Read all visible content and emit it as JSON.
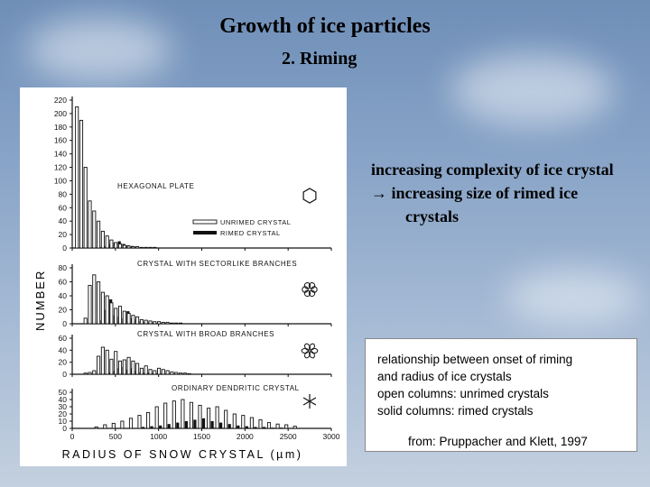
{
  "title": "Growth of ice particles",
  "subtitle": "2. Riming",
  "notes": {
    "line1": "increasing complexity of ice crystal",
    "line2": "→ increasing size of rimed ice",
    "line3": "crystals"
  },
  "caption": {
    "line1": "relationship between onset of riming",
    "line2": "and radius of ice crystals",
    "line3": "open columns: unrimed crystals",
    "line4": "solid columns: rimed crystals",
    "source": "from: Pruppacher and Klett, 1997"
  },
  "chart_data": [
    {
      "type": "bar",
      "title": "HEXAGONAL PLATE",
      "icon": "hexagon-icon",
      "ylim": [
        0,
        220
      ],
      "yticks": [
        "220",
        "200",
        "180",
        "160",
        "140",
        "120",
        "100",
        "80",
        "60",
        "40",
        "20",
        "0"
      ],
      "legend": [
        "UNRIMED CRYSTAL",
        "RIMED CRYSTAL"
      ],
      "x": [
        75,
        125,
        175,
        225,
        275,
        325,
        375,
        425,
        475,
        525,
        575,
        625,
        675,
        725,
        775,
        825,
        875,
        925,
        975
      ],
      "series": [
        {
          "name": "UNRIMED CRYSTAL",
          "values": [
            210,
            190,
            120,
            70,
            55,
            40,
            25,
            18,
            12,
            8,
            6,
            4,
            3,
            2,
            2,
            1,
            1,
            1,
            1
          ]
        },
        {
          "name": "RIMED CRYSTAL",
          "values": [
            0,
            0,
            0,
            0,
            0,
            2,
            3,
            6,
            8,
            10,
            6,
            4,
            3,
            2,
            1,
            1,
            0,
            0,
            0
          ]
        }
      ]
    },
    {
      "type": "bar",
      "title": "CRYSTAL WITH SECTORLIKE BRANCHES",
      "icon": "sector-plate-icon",
      "ylim": [
        0,
        80
      ],
      "yticks": [
        "80",
        "60",
        "40",
        "20",
        "0"
      ],
      "x": [
        175,
        225,
        275,
        325,
        375,
        425,
        475,
        525,
        575,
        625,
        675,
        725,
        775,
        825,
        875,
        925,
        975,
        1025,
        1075,
        1125,
        1175,
        1225,
        1275
      ],
      "series": [
        {
          "name": "UNRIMED CRYSTAL",
          "values": [
            8,
            55,
            70,
            60,
            45,
            40,
            30,
            22,
            25,
            18,
            15,
            12,
            10,
            6,
            5,
            4,
            3,
            3,
            2,
            2,
            1,
            1,
            1
          ]
        },
        {
          "name": "RIMED CRYSTAL",
          "values": [
            0,
            0,
            0,
            5,
            20,
            35,
            12,
            10,
            8,
            18,
            8,
            6,
            4,
            3,
            2,
            2,
            1,
            1,
            1,
            1,
            1,
            0,
            0
          ]
        }
      ]
    },
    {
      "type": "bar",
      "title": "CRYSTAL WITH BROAD BRANCHES",
      "icon": "broad-branch-icon",
      "ylim": [
        0,
        60
      ],
      "yticks": [
        "60",
        "40",
        "20",
        "0"
      ],
      "x": [
        175,
        225,
        275,
        325,
        375,
        425,
        475,
        525,
        575,
        625,
        675,
        725,
        775,
        825,
        875,
        925,
        975,
        1025,
        1075,
        1125,
        1175,
        1225,
        1275,
        1325,
        1375
      ],
      "series": [
        {
          "name": "UNRIMED CRYSTAL",
          "values": [
            2,
            3,
            6,
            30,
            45,
            40,
            25,
            38,
            22,
            24,
            28,
            22,
            18,
            10,
            14,
            8,
            6,
            10,
            8,
            6,
            4,
            3,
            2,
            2,
            1
          ]
        },
        {
          "name": "RIMED CRYSTAL",
          "values": [
            0,
            0,
            0,
            0,
            0,
            3,
            6,
            10,
            12,
            8,
            10,
            6,
            4,
            3,
            3,
            2,
            2,
            2,
            1,
            1,
            1,
            0,
            0,
            0,
            0
          ]
        }
      ]
    },
    {
      "type": "bar",
      "title": "ORDINARY DENDRITIC CRYSTAL",
      "icon": "dendrite-icon",
      "xlabel": "RADIUS OF SNOW CRYSTAL (µm)",
      "ylabel": "NUMBER",
      "xlim": [
        0,
        3000
      ],
      "xticks": [
        "0",
        "500",
        "1000",
        "1500",
        "2000",
        "2500",
        "3000"
      ],
      "ylim": [
        0,
        50
      ],
      "yticks": [
        "50",
        "40",
        "30",
        "20",
        "10",
        "0"
      ],
      "x": [
        200,
        300,
        400,
        500,
        600,
        700,
        800,
        900,
        1000,
        1100,
        1200,
        1300,
        1400,
        1500,
        1600,
        1700,
        1800,
        1900,
        2000,
        2100,
        2200,
        2300,
        2400,
        2500,
        2600
      ],
      "series": [
        {
          "name": "UNRIMED CRYSTAL",
          "values": [
            0,
            2,
            5,
            7,
            10,
            14,
            18,
            22,
            30,
            35,
            38,
            40,
            36,
            32,
            28,
            30,
            25,
            20,
            18,
            15,
            12,
            8,
            6,
            5,
            3
          ]
        },
        {
          "name": "RIMED CRYSTAL",
          "values": [
            0,
            0,
            0,
            0,
            0,
            0,
            2,
            3,
            4,
            6,
            8,
            10,
            12,
            14,
            10,
            8,
            6,
            4,
            3,
            2,
            2,
            1,
            1,
            0,
            0
          ]
        }
      ]
    }
  ]
}
